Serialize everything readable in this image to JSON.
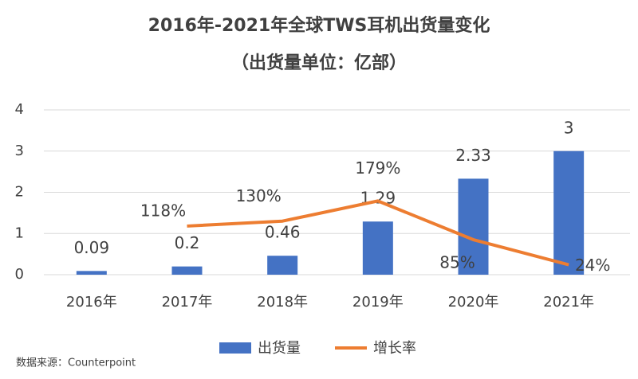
{
  "chart_data": {
    "type": "bar-line",
    "title": "2016年-2021年全球TWS耳机出货量变化",
    "subtitle": "（出货量单位：亿部）",
    "categories": [
      "2016年",
      "2017年",
      "2018年",
      "2019年",
      "2020年",
      "2021年"
    ],
    "series": [
      {
        "name": "出货量",
        "type": "bar",
        "color": "#4472c4",
        "values": [
          0.09,
          0.2,
          0.46,
          1.29,
          2.33,
          3
        ]
      },
      {
        "name": "增长率",
        "type": "line",
        "axis": "y2",
        "color": "#ed7d31",
        "values": [
          null,
          118,
          130,
          179,
          85,
          24
        ],
        "value_labels": [
          null,
          "118%",
          "130%",
          "179%",
          "85%",
          "24%"
        ]
      }
    ],
    "ylim": [
      0,
      4
    ],
    "yticks": [
      0,
      1,
      2,
      3,
      4
    ],
    "y2lim": [
      0,
      400
    ],
    "grid": true,
    "legend": "bottom",
    "source": "数据来源：Counterpoint"
  }
}
